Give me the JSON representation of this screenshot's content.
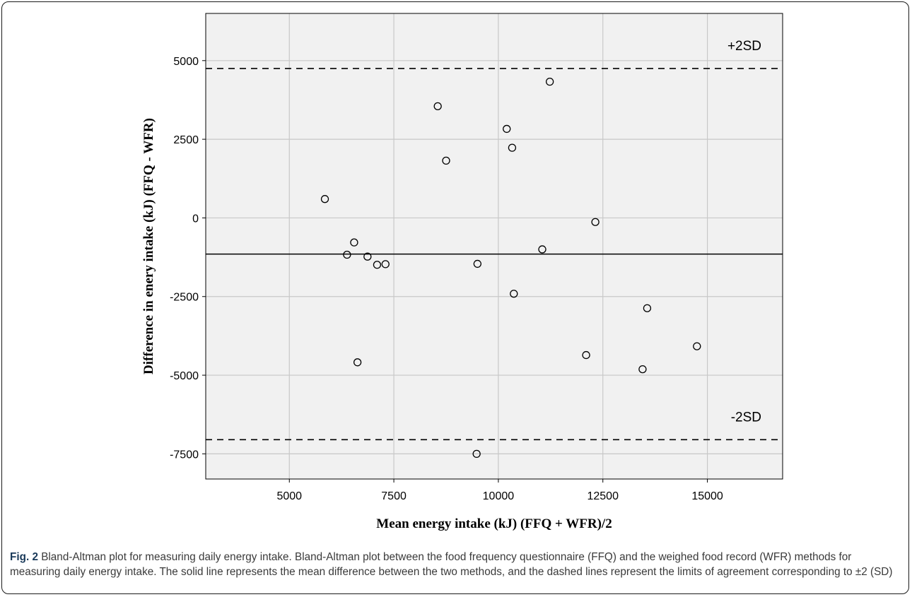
{
  "chart_data": {
    "type": "scatter",
    "xlabel": "Mean energy intake (kJ) (FFQ + WFR)/2",
    "ylabel": "Difference in enery intake (kJ) (FFQ - WFR)",
    "xlim": [
      3000,
      16800
    ],
    "ylim": [
      -8300,
      6500
    ],
    "x_ticks": [
      5000,
      7500,
      10000,
      12500,
      15000
    ],
    "y_ticks": [
      -7500,
      -5000,
      -2500,
      0,
      2500,
      5000
    ],
    "grid": true,
    "points": [
      {
        "x": 5850,
        "y": 600
      },
      {
        "x": 6380,
        "y": -1170
      },
      {
        "x": 6550,
        "y": -780
      },
      {
        "x": 6630,
        "y": -4590
      },
      {
        "x": 6870,
        "y": -1230
      },
      {
        "x": 7100,
        "y": -1490
      },
      {
        "x": 7300,
        "y": -1470
      },
      {
        "x": 8550,
        "y": 3550
      },
      {
        "x": 8750,
        "y": 1820
      },
      {
        "x": 9480,
        "y": -7500
      },
      {
        "x": 9500,
        "y": -1460
      },
      {
        "x": 10200,
        "y": 2830
      },
      {
        "x": 10330,
        "y": 2230
      },
      {
        "x": 10370,
        "y": -2410
      },
      {
        "x": 11050,
        "y": -1000
      },
      {
        "x": 11230,
        "y": 4330
      },
      {
        "x": 12100,
        "y": -4360
      },
      {
        "x": 12320,
        "y": -130
      },
      {
        "x": 13450,
        "y": -4810
      },
      {
        "x": 13560,
        "y": -2870
      },
      {
        "x": 14750,
        "y": -4080
      }
    ],
    "mean_line": -1150,
    "upper_limit": 4750,
    "lower_limit": -7050,
    "upper_label": "+2SD",
    "lower_label": "-2SD"
  },
  "caption": {
    "fig_label": "Fig. 2",
    "text": " Bland-Altman plot for measuring daily energy intake. Bland-Altman plot between the food frequency questionnaire (FFQ) and the weighed food record (WFR) methods for measuring daily energy intake. The solid line represents the mean difference between the two methods, and the dashed lines represent the limits of agreement corresponding to ±2 (SD)"
  }
}
